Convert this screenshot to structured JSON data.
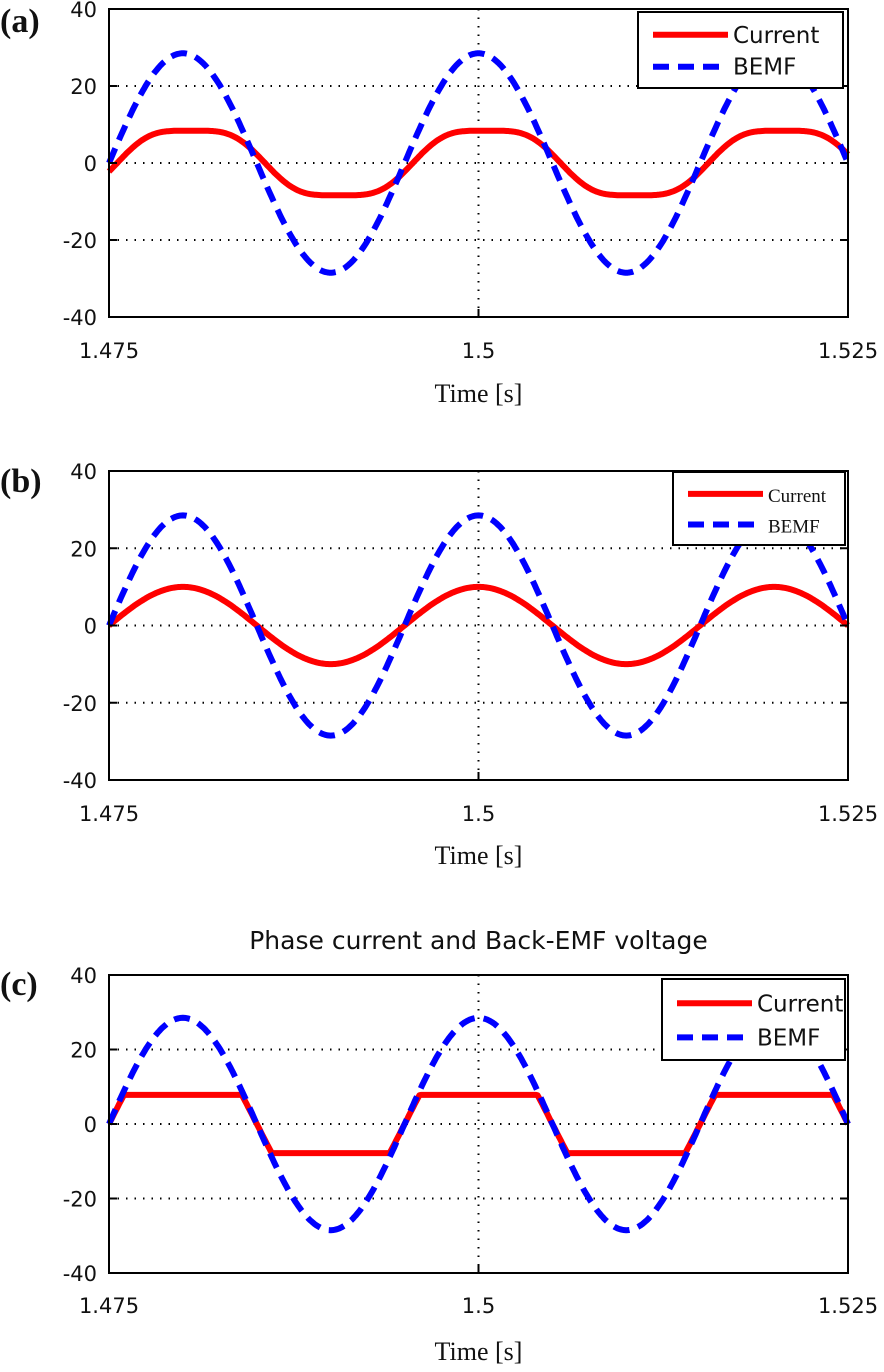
{
  "figure": {
    "panels": [
      "(a)",
      "(b)",
      "(c)"
    ]
  },
  "chart_data": [
    {
      "type": "line",
      "panel_label": "(a)",
      "title": "",
      "xlabel": "Time [s]",
      "ylabel": "",
      "xlim": [
        1.475,
        1.525
      ],
      "ylim": [
        -40,
        40
      ],
      "xticks": [
        1.475,
        1.5,
        1.525
      ],
      "xtick_labels": [
        "1.475",
        "1.5",
        "1.525"
      ],
      "yticks": [
        40,
        20,
        0,
        -20,
        -40
      ],
      "ytick_labels": [
        "40",
        "20",
        "0",
        "-20",
        "-40"
      ],
      "grid": true,
      "legend": {
        "position": "top-right",
        "style": "sans",
        "entries": [
          "Current",
          "BEMF"
        ]
      },
      "series": [
        {
          "name": "Current",
          "color": "#ff0000",
          "dash": "solid",
          "waveform": "stepped-sine",
          "amplitude": 9.5,
          "frequency_hz": 50,
          "phase_deg": -10
        },
        {
          "name": "BEMF",
          "color": "#0000ff",
          "dash": "dashed",
          "waveform": "sine",
          "amplitude": 28.5,
          "frequency_hz": 50,
          "phase_deg": 0
        }
      ]
    },
    {
      "type": "line",
      "panel_label": "(b)",
      "title": "",
      "xlabel": "Time [s]",
      "ylabel": "",
      "xlim": [
        1.475,
        1.525
      ],
      "ylim": [
        -40,
        40
      ],
      "xticks": [
        1.475,
        1.5,
        1.525
      ],
      "xtick_labels": [
        "1.475",
        "1.5",
        "1.525"
      ],
      "yticks": [
        40,
        20,
        0,
        -20,
        -40
      ],
      "ytick_labels": [
        "40",
        "20",
        "0",
        "-20",
        "-40"
      ],
      "grid": true,
      "legend": {
        "position": "top-right",
        "style": "serif",
        "entries": [
          "Current",
          "BEMF"
        ]
      },
      "series": [
        {
          "name": "Current",
          "color": "#ff0000",
          "dash": "solid",
          "waveform": "sine",
          "amplitude": 10,
          "frequency_hz": 50,
          "phase_deg": 0
        },
        {
          "name": "BEMF",
          "color": "#0000ff",
          "dash": "dashed",
          "waveform": "sine",
          "amplitude": 28.5,
          "frequency_hz": 50,
          "phase_deg": 0
        }
      ]
    },
    {
      "type": "line",
      "panel_label": "(c)",
      "title": "Phase current and Back-EMF voltage",
      "xlabel": "Time [s]",
      "ylabel": "",
      "xlim": [
        1.475,
        1.525
      ],
      "ylim": [
        -40,
        40
      ],
      "xticks": [
        1.475,
        1.5,
        1.525
      ],
      "xtick_labels": [
        "1.475",
        "1.5",
        "1.525"
      ],
      "yticks": [
        40,
        20,
        0,
        -20,
        -40
      ],
      "ytick_labels": [
        "40",
        "20",
        "0",
        "-20",
        "-40"
      ],
      "grid": true,
      "legend": {
        "position": "top-right",
        "style": "sans",
        "entries": [
          "Current",
          "BEMF"
        ]
      },
      "series": [
        {
          "name": "Current",
          "color": "#ff0000",
          "dash": "solid",
          "waveform": "trapezoid",
          "amplitude": 7.8,
          "frequency_hz": 50,
          "phase_deg": 0
        },
        {
          "name": "BEMF",
          "color": "#0000ff",
          "dash": "dashed",
          "waveform": "sine",
          "amplitude": 28.5,
          "frequency_hz": 50,
          "phase_deg": 0
        }
      ]
    }
  ]
}
